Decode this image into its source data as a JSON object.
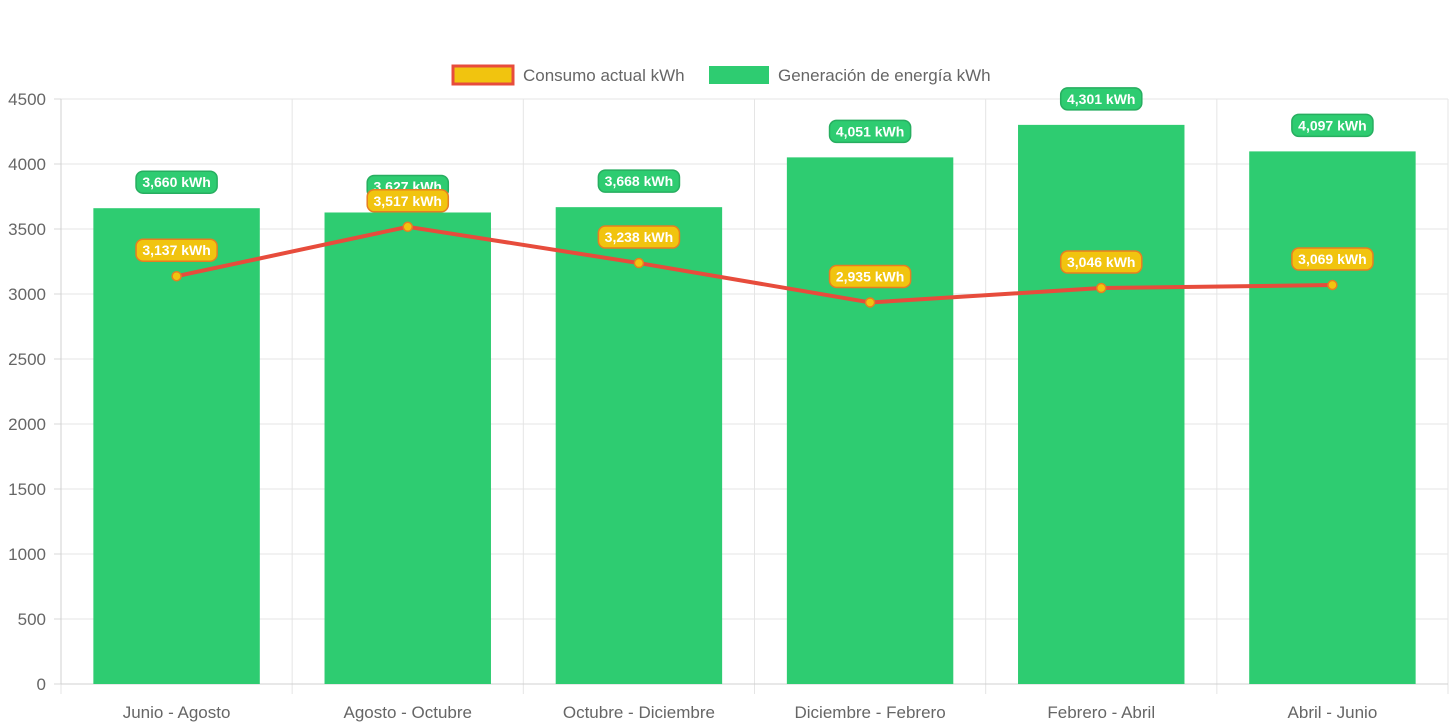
{
  "chart_data": {
    "type": "bar",
    "title": "",
    "xlabel": "",
    "ylabel": "",
    "categories": [
      "Junio - Agosto",
      "Agosto - Octubre",
      "Octubre - Diciembre",
      "Diciembre - Febrero",
      "Febrero - Abril",
      "Abril - Junio"
    ],
    "ylim": [
      0,
      4500
    ],
    "yticks": [
      0,
      500,
      1000,
      1500,
      2000,
      2500,
      3000,
      3500,
      4000,
      4500
    ],
    "grid": true,
    "legend_position": "top",
    "series": [
      {
        "name": "Consumo actual kWh",
        "type": "line",
        "values": [
          3137,
          3517,
          3238,
          2935,
          3046,
          3069
        ],
        "labels": [
          "3,137 kWh",
          "3,517 kWh",
          "3,238 kWh",
          "2,935 kWh",
          "3,046 kWh",
          "3,069 kWh"
        ],
        "color": "#e74c3c",
        "fill_color": "#f1c40f"
      },
      {
        "name": "Generación de energía kWh",
        "type": "bar",
        "values": [
          3660,
          3627,
          3668,
          4051,
          4301,
          4097
        ],
        "labels": [
          "3,660 kWh",
          "3,627 kWh",
          "3,668 kWh",
          "4,051 kWh",
          "4,301 kWh",
          "4,097 kWh"
        ],
        "color": "#2ecc71"
      }
    ]
  }
}
